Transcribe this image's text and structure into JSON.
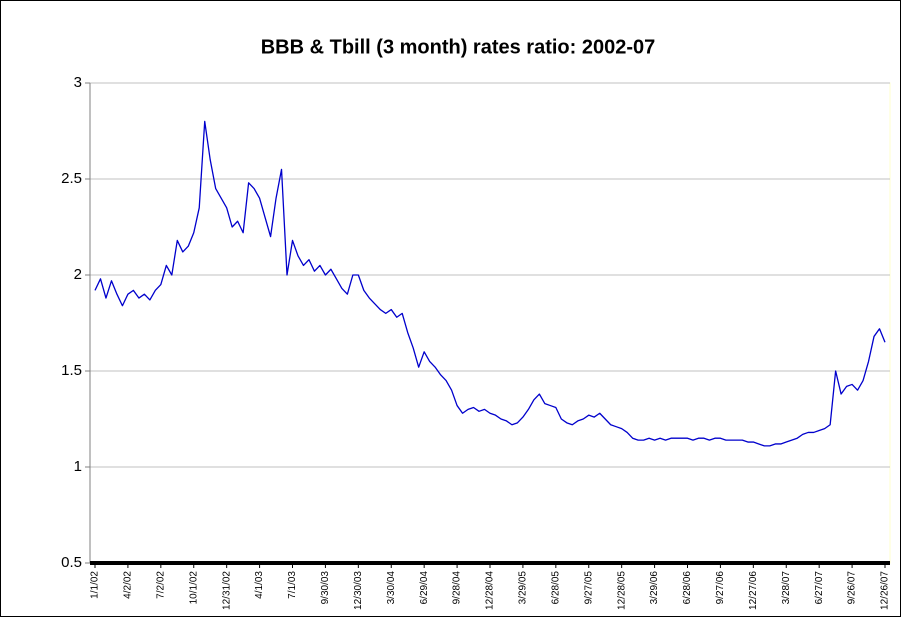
{
  "chart_data": {
    "type": "line",
    "title": "BBB & Tbill (3 month) rates ratio: 2002-07",
    "categories": [
      "1/1/02",
      null,
      null,
      null,
      null,
      null,
      "4/2/02",
      null,
      null,
      null,
      null,
      null,
      "7/2/02",
      null,
      null,
      null,
      null,
      null,
      "10/1/02",
      null,
      null,
      null,
      null,
      null,
      "12/31/02",
      null,
      null,
      null,
      null,
      null,
      "4/1/03",
      null,
      null,
      null,
      null,
      null,
      "7/1/03",
      null,
      null,
      null,
      null,
      null,
      "9/30/03",
      null,
      null,
      null,
      null,
      null,
      "12/30/03",
      null,
      null,
      null,
      null,
      null,
      "3/30/04",
      null,
      null,
      null,
      null,
      null,
      "6/29/04",
      null,
      null,
      null,
      null,
      null,
      "9/28/04",
      null,
      null,
      null,
      null,
      null,
      "12/28/04",
      null,
      null,
      null,
      null,
      null,
      "3/29/05",
      null,
      null,
      null,
      null,
      null,
      "6/28/05",
      null,
      null,
      null,
      null,
      null,
      "9/27/05",
      null,
      null,
      null,
      null,
      null,
      "12/28/05",
      null,
      null,
      null,
      null,
      null,
      "3/29/06",
      null,
      null,
      null,
      null,
      null,
      "6/28/06",
      null,
      null,
      null,
      null,
      null,
      "9/27/06",
      null,
      null,
      null,
      null,
      null,
      "12/27/06",
      null,
      null,
      null,
      null,
      null,
      "3/28/07",
      null,
      null,
      null,
      null,
      null,
      "6/27/07",
      null,
      null,
      null,
      null,
      null,
      "9/26/07",
      null,
      null,
      null,
      null,
      null,
      "12/26/07"
    ],
    "values": [
      1.92,
      1.98,
      1.88,
      1.97,
      1.9,
      1.84,
      1.9,
      1.92,
      1.88,
      1.9,
      1.87,
      1.92,
      1.95,
      2.05,
      2.0,
      2.18,
      2.12,
      2.15,
      2.22,
      2.35,
      2.8,
      2.6,
      2.45,
      2.4,
      2.35,
      2.25,
      2.28,
      2.22,
      2.48,
      2.45,
      2.4,
      2.3,
      2.2,
      2.4,
      2.55,
      2.0,
      2.18,
      2.1,
      2.05,
      2.08,
      2.02,
      2.05,
      2.0,
      2.03,
      1.98,
      1.93,
      1.9,
      2.0,
      2.0,
      1.92,
      1.88,
      1.85,
      1.82,
      1.8,
      1.82,
      1.78,
      1.8,
      1.7,
      1.62,
      1.52,
      1.6,
      1.55,
      1.52,
      1.48,
      1.45,
      1.4,
      1.32,
      1.28,
      1.3,
      1.31,
      1.29,
      1.3,
      1.28,
      1.27,
      1.25,
      1.24,
      1.22,
      1.23,
      1.26,
      1.3,
      1.35,
      1.38,
      1.33,
      1.32,
      1.31,
      1.25,
      1.23,
      1.22,
      1.24,
      1.25,
      1.27,
      1.26,
      1.28,
      1.25,
      1.22,
      1.21,
      1.2,
      1.18,
      1.15,
      1.14,
      1.14,
      1.15,
      1.14,
      1.15,
      1.14,
      1.15,
      1.15,
      1.15,
      1.15,
      1.14,
      1.15,
      1.15,
      1.14,
      1.15,
      1.15,
      1.14,
      1.14,
      1.14,
      1.14,
      1.13,
      1.13,
      1.12,
      1.11,
      1.11,
      1.12,
      1.12,
      1.13,
      1.14,
      1.15,
      1.17,
      1.18,
      1.18,
      1.19,
      1.2,
      1.22,
      1.5,
      1.38,
      1.42,
      1.43,
      1.4,
      1.45,
      1.55,
      1.68,
      1.72,
      1.65
    ],
    "color": "#0000cc",
    "ylim": [
      0.5,
      3
    ],
    "yticks": [
      0.5,
      1,
      {
        "value": 1.5,
        "label": "1.5"
      },
      2,
      {
        "value": 2.5,
        "label": "2.5"
      },
      3
    ],
    "grid": true
  }
}
